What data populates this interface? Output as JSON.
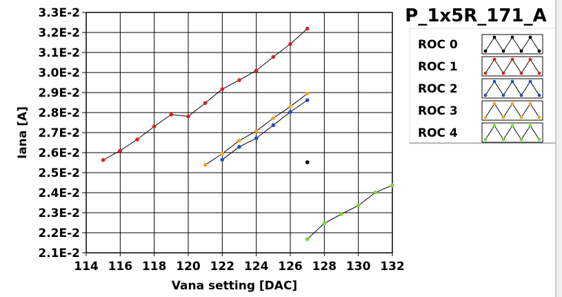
{
  "chart_data": {
    "type": "line",
    "title": "P_1x5R_171_A",
    "xlabel": "Vana setting [DAC]",
    "ylabel": "Iana [A]",
    "xlim": [
      114,
      132
    ],
    "ylim": [
      0.021,
      0.033
    ],
    "x_ticks": [
      "114",
      "116",
      "118",
      "120",
      "122",
      "124",
      "126",
      "128",
      "130",
      "132"
    ],
    "y_ticks": [
      "2.1E-2",
      "2.2E-2",
      "2.3E-2",
      "2.4E-2",
      "2.5E-2",
      "2.6E-2",
      "2.7E-2",
      "2.8E-2",
      "2.9E-2",
      "3.0E-2",
      "3.1E-2",
      "3.2E-2",
      "3.3E-2"
    ],
    "grid": true,
    "legend_position": "right",
    "series": [
      {
        "name": "ROC 0",
        "color": "#000000",
        "points": [
          [
            127,
            0.02552
          ]
        ]
      },
      {
        "name": "ROC 1",
        "color": "#e0201b",
        "points": [
          [
            115,
            0.02563
          ],
          [
            116,
            0.0261
          ],
          [
            117,
            0.02666
          ],
          [
            118,
            0.02731
          ],
          [
            119,
            0.0279
          ],
          [
            120,
            0.02781
          ],
          [
            121,
            0.02848
          ],
          [
            122,
            0.02917
          ],
          [
            123,
            0.02962
          ],
          [
            124,
            0.0301
          ],
          [
            125,
            0.03078
          ],
          [
            126,
            0.03142
          ],
          [
            127,
            0.03219
          ]
        ]
      },
      {
        "name": "ROC 2",
        "color": "#1f4fbf",
        "points": [
          [
            122,
            0.02565
          ],
          [
            123,
            0.02629
          ],
          [
            124,
            0.02672
          ],
          [
            125,
            0.02737
          ],
          [
            126,
            0.02803
          ],
          [
            127,
            0.02862
          ]
        ]
      },
      {
        "name": "ROC 3",
        "color": "#f5a623",
        "points": [
          [
            121,
            0.02539
          ],
          [
            122,
            0.02595
          ],
          [
            123,
            0.0266
          ],
          [
            124,
            0.02708
          ],
          [
            125,
            0.02772
          ],
          [
            126,
            0.0283
          ],
          [
            127,
            0.02895
          ]
        ]
      },
      {
        "name": "ROC 4",
        "color": "#6fdc2a",
        "points": [
          [
            127,
            0.02168
          ],
          [
            128,
            0.02247
          ],
          [
            129,
            0.02293
          ],
          [
            130,
            0.02336
          ],
          [
            131,
            0.02401
          ],
          [
            132,
            0.02437
          ]
        ]
      }
    ]
  }
}
